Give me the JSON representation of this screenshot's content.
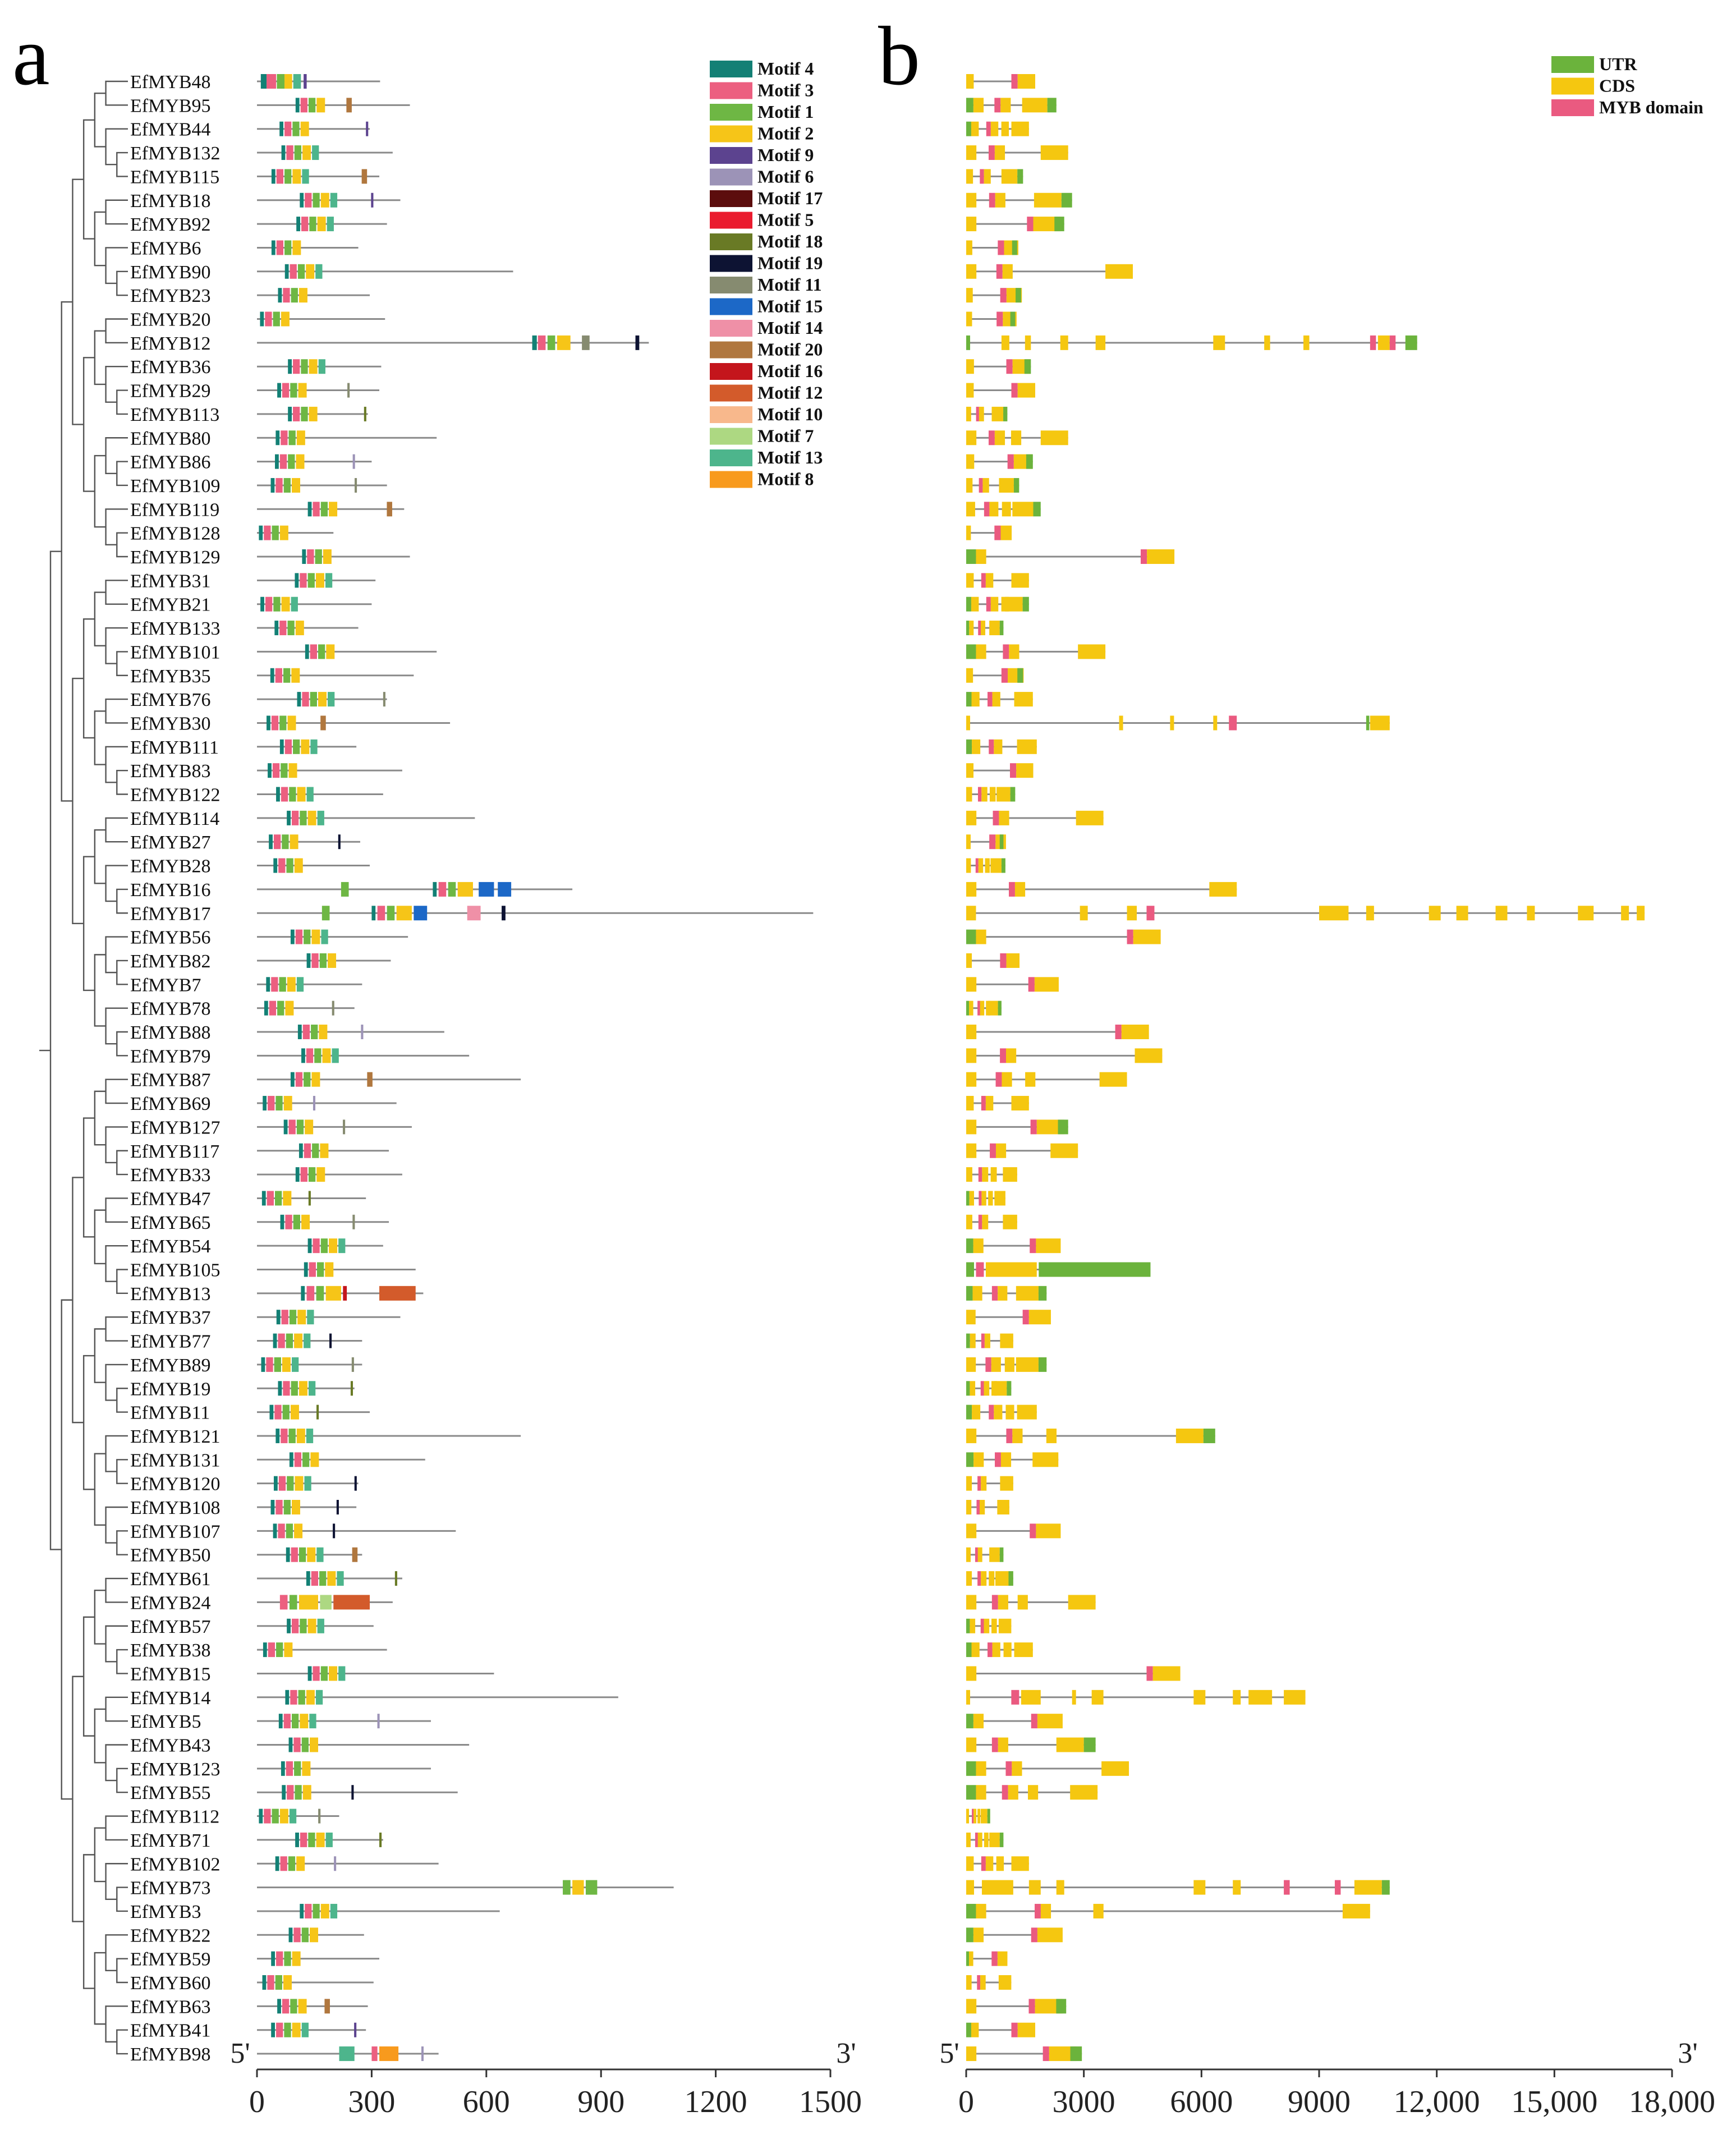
{
  "figure": {
    "panel_a": "a",
    "panel_b": "b",
    "five_prime": "5'",
    "three_prime": "3'"
  },
  "colors": {
    "motifs": {
      "Motif 4": "#138075",
      "Motif 3": "#ec5f80",
      "Motif 1": "#6eb744",
      "Motif 2": "#f6c518",
      "Motif 9": "#5c438f",
      "Motif 6": "#9c93b7",
      "Motif 17": "#5c0d0d",
      "Motif 5": "#ea1b2e",
      "Motif 18": "#697a25",
      "Motif 19": "#0d1333",
      "Motif 11": "#868b70",
      "Motif 15": "#1c68c7",
      "Motif 14": "#ef90a7",
      "Motif 20": "#b0773e",
      "Motif 16": "#c4151c",
      "Motif 12": "#d35b2b",
      "Motif 10": "#f8b88c",
      "Motif 7": "#add882",
      "Motif 13": "#4db58c",
      "Motif 8": "#f89a1d"
    },
    "utr": "#6bb33c",
    "cds": "#f5c710",
    "myb": "#ea5a80",
    "line": "#8a8a8a"
  },
  "chart_data": [
    {
      "type": "motif-diagram",
      "panel": "a",
      "title": "",
      "legend": [
        "Motif 4",
        "Motif 3",
        "Motif 1",
        "Motif 2",
        "Motif 9",
        "Motif 6",
        "Motif 17",
        "Motif 5",
        "Motif 18",
        "Motif 19",
        "Motif 11",
        "Motif 15",
        "Motif 14",
        "Motif 20",
        "Motif 16",
        "Motif 12",
        "Motif 10",
        "Motif 7",
        "Motif 13",
        "Motif 8"
      ],
      "xlim": [
        0,
        1500
      ],
      "xticks": [
        0,
        300,
        600,
        900,
        1200,
        1500
      ],
      "genes": [
        "EfMYB48",
        "EfMYB95",
        "EfMYB44",
        "EfMYB132",
        "EfMYB115",
        "EfMYB18",
        "EfMYB92",
        "EfMYB6",
        "EfMYB90",
        "EfMYB23",
        "EfMYB20",
        "EfMYB12",
        "EfMYB36",
        "EfMYB29",
        "EfMYB113",
        "EfMYB80",
        "EfMYB86",
        "EfMYB109",
        "EfMYB119",
        "EfMYB128",
        "EfMYB129",
        "EfMYB31",
        "EfMYB21",
        "EfMYB133",
        "EfMYB101",
        "EfMYB35",
        "EfMYB76",
        "EfMYB30",
        "EfMYB111",
        "EfMYB83",
        "EfMYB122",
        "EfMYB114",
        "EfMYB27",
        "EfMYB28",
        "EfMYB16",
        "EfMYB17",
        "EfMYB56",
        "EfMYB82",
        "EfMYB7",
        "EfMYB78",
        "EfMYB88",
        "EfMYB79",
        "EfMYB87",
        "EfMYB69",
        "EfMYB127",
        "EfMYB117",
        "EfMYB33",
        "EfMYB47",
        "EfMYB65",
        "EfMYB54",
        "EfMYB105",
        "EfMYB13",
        "EfMYB37",
        "EfMYB77",
        "EfMYB89",
        "EfMYB19",
        "EfMYB11",
        "EfMYB121",
        "EfMYB131",
        "EfMYB120",
        "EfMYB108",
        "EfMYB107",
        "EfMYB50",
        "EfMYB61",
        "EfMYB24",
        "EfMYB57",
        "EfMYB38",
        "EfMYB15",
        "EfMYB14",
        "EfMYB5",
        "EfMYB43",
        "EfMYB123",
        "EfMYB55",
        "EfMYB112",
        "EfMYB71",
        "EfMYB102",
        "EfMYB73",
        "EfMYB3",
        "EfMYB22",
        "EfMYB59",
        "EfMYB60",
        "EfMYB63",
        "EfMYB41",
        "EfMYB98"
      ],
      "protein_lengths": [
        322,
        400,
        295,
        355,
        320,
        375,
        340,
        265,
        670,
        295,
        335,
        1025,
        325,
        320,
        290,
        470,
        300,
        340,
        385,
        200,
        400,
        310,
        300,
        265,
        470,
        410,
        340,
        505,
        260,
        380,
        330,
        570,
        270,
        295,
        825,
        1455,
        395,
        350,
        275,
        255,
        490,
        555,
        690,
        365,
        405,
        345,
        380,
        285,
        345,
        330,
        415,
        435,
        375,
        275,
        275,
        255,
        295,
        690,
        440,
        265,
        260,
        520,
        275,
        380,
        355,
        305,
        340,
        620,
        945,
        455,
        555,
        455,
        525,
        215,
        330,
        475,
        1090,
        635,
        280,
        320,
        305,
        290,
        285,
        475
      ],
      "motif_domains": {
        "EfMYB48": [
          [
            "Motif 4",
            10,
            15
          ],
          [
            "Motif 3",
            25,
            25
          ],
          [
            "Motif 1",
            52,
            20
          ],
          [
            "Motif 2",
            72,
            20
          ],
          [
            "Motif 13",
            95,
            20
          ],
          [
            "Motif 9",
            122,
            8
          ]
        ],
        "EfMYB12": [
          [
            "Motif 4",
            720,
            12
          ],
          [
            "Motif 3",
            735,
            20
          ],
          [
            "Motif 1",
            760,
            20
          ],
          [
            "Motif 2",
            785,
            35
          ],
          [
            "Motif 11",
            850,
            20
          ],
          [
            "Motif 19",
            990,
            10
          ]
        ],
        "EfMYB16": [
          [
            "Motif 1",
            220,
            20
          ],
          [
            "Motif 4",
            460,
            10
          ],
          [
            "Motif 3",
            475,
            20
          ],
          [
            "Motif 1",
            500,
            20
          ],
          [
            "Motif 2",
            525,
            40
          ],
          [
            "Motif 15",
            580,
            40
          ],
          [
            "Motif 15",
            630,
            35
          ]
        ],
        "EfMYB17": [
          [
            "Motif 1",
            170,
            20
          ],
          [
            "Motif 4",
            300,
            10
          ],
          [
            "Motif 3",
            315,
            20
          ],
          [
            "Motif 1",
            340,
            20
          ],
          [
            "Motif 2",
            365,
            40
          ],
          [
            "Motif 15",
            410,
            35
          ],
          [
            "Motif 14",
            550,
            35
          ],
          [
            "Motif 19",
            640,
            10
          ]
        ],
        "EfMYB13": [
          [
            "Motif 4",
            115,
            10
          ],
          [
            "Motif 3",
            130,
            20
          ],
          [
            "Motif 1",
            155,
            20
          ],
          [
            "Motif 2",
            180,
            40
          ],
          [
            "Motif 16",
            225,
            10
          ],
          [
            "Motif 12",
            320,
            95
          ]
        ],
        "EfMYB24": [
          [
            "Motif 3",
            60,
            20
          ],
          [
            "Motif 1",
            85,
            20
          ],
          [
            "Motif 2",
            110,
            50
          ],
          [
            "Motif 7",
            165,
            30
          ],
          [
            "Motif 12",
            200,
            95
          ]
        ],
        "EfMYB73": [
          [
            "Motif 1",
            800,
            20
          ],
          [
            "Motif 2",
            825,
            30
          ],
          [
            "Motif 1",
            860,
            30
          ]
        ],
        "EfMYB98": [
          [
            "Motif 13",
            215,
            40
          ],
          [
            "Motif 3",
            300,
            15
          ],
          [
            "Motif 8",
            320,
            50
          ],
          [
            "Motif 6",
            430,
            5
          ]
        ]
      }
    },
    {
      "type": "gene-structure",
      "panel": "b",
      "title": "",
      "legend": [
        "UTR",
        "CDS",
        "MYB domain"
      ],
      "xlim": [
        0,
        18000
      ],
      "xticks": [
        0,
        3000,
        6000,
        9000,
        12000,
        15000,
        18000
      ],
      "gene_lengths_bp": [
        1600,
        2300,
        1600,
        2600,
        1450,
        2700,
        2500,
        1300,
        4250,
        1400,
        1250,
        11500,
        1650,
        1600,
        1050,
        2600,
        1700,
        1350,
        1900,
        1000,
        5150,
        1600,
        1600,
        950,
        3550,
        1450,
        1700,
        10800,
        1800,
        1550,
        1250,
        3500,
        950,
        1000,
        6900,
        17300,
        4800,
        1200,
        2200,
        900,
        4500,
        5000,
        4100,
        1600,
        2600,
        2850,
        1300,
        1000,
        1300,
        2250,
        4700,
        2050,
        2000,
        1200,
        2050,
        1150,
        1800,
        6350,
        2350,
        1200,
        1100,
        2250,
        950,
        1200,
        3300,
        1150,
        1700,
        5300,
        8650,
        2300,
        3300,
        4150,
        3350,
        600,
        950,
        1600,
        10800,
        10300,
        2300,
        900,
        1150,
        2550,
        1600,
        2950
      ],
      "gene_structure": {
        "EfMYB12": [
          [
            "utr",
            0,
            100
          ],
          [
            "cds",
            900,
            200
          ],
          [
            "cds",
            1500,
            150
          ],
          [
            "cds",
            2400,
            200
          ],
          [
            "cds",
            3300,
            250
          ],
          [
            "cds",
            6300,
            300
          ],
          [
            "cds",
            7600,
            150
          ],
          [
            "cds",
            8600,
            150
          ],
          [
            "myb",
            10300,
            150
          ],
          [
            "cds",
            10500,
            300
          ],
          [
            "myb",
            10800,
            150
          ],
          [
            "utr",
            11200,
            300
          ]
        ],
        "EfMYB17": [
          [
            "cds",
            0,
            250
          ],
          [
            "cds",
            2900,
            200
          ],
          [
            "cds",
            4100,
            250
          ],
          [
            "myb",
            4600,
            200
          ],
          [
            "cds",
            9000,
            750
          ],
          [
            "cds",
            10200,
            200
          ],
          [
            "cds",
            11800,
            300
          ],
          [
            "cds",
            12500,
            300
          ],
          [
            "cds",
            13500,
            300
          ],
          [
            "cds",
            14300,
            200
          ],
          [
            "cds",
            15600,
            400
          ],
          [
            "cds",
            16700,
            200
          ],
          [
            "cds",
            17100,
            200
          ]
        ],
        "EfMYB30": [
          [
            "cds",
            0,
            100
          ],
          [
            "cds",
            3900,
            100
          ],
          [
            "cds",
            5200,
            100
          ],
          [
            "cds",
            6300,
            100
          ],
          [
            "myb",
            6700,
            200
          ],
          [
            "utr",
            10200,
            80
          ],
          [
            "cds",
            10300,
            500
          ]
        ],
        "EfMYB105": [
          [
            "utr",
            0,
            200
          ],
          [
            "myb",
            250,
            200
          ],
          [
            "cds",
            500,
            1300
          ],
          [
            "utr",
            1850,
            2850
          ]
        ],
        "EfMYB73": [
          [
            "cds",
            0,
            200
          ],
          [
            "cds",
            400,
            800
          ],
          [
            "cds",
            1600,
            300
          ],
          [
            "cds",
            2300,
            200
          ],
          [
            "cds",
            5800,
            300
          ],
          [
            "cds",
            6800,
            200
          ],
          [
            "myb",
            8100,
            150
          ],
          [
            "myb",
            9400,
            150
          ],
          [
            "cds",
            9900,
            700
          ],
          [
            "utr",
            10600,
            200
          ]
        ],
        "EfMYB14": [
          [
            "cds",
            0,
            100
          ],
          [
            "myb",
            1150,
            200
          ],
          [
            "cds",
            1400,
            500
          ],
          [
            "cds",
            2700,
            100
          ],
          [
            "cds",
            3200,
            300
          ],
          [
            "cds",
            5800,
            300
          ],
          [
            "cds",
            6800,
            200
          ],
          [
            "cds",
            7200,
            600
          ],
          [
            "cds",
            8100,
            550
          ]
        ]
      }
    }
  ],
  "legend_a": [
    "Motif 4",
    "Motif 3",
    "Motif 1",
    "Motif 2",
    "Motif 9",
    "Motif 6",
    "Motif 17",
    "Motif 5",
    "Motif 18",
    "Motif 19",
    "Motif 11",
    "Motif 15",
    "Motif 14",
    "Motif 20",
    "Motif 16",
    "Motif 12",
    "Motif 10",
    "Motif 7",
    "Motif 13",
    "Motif 8"
  ],
  "legend_b": [
    "UTR",
    "CDS",
    "MYB domain"
  ]
}
